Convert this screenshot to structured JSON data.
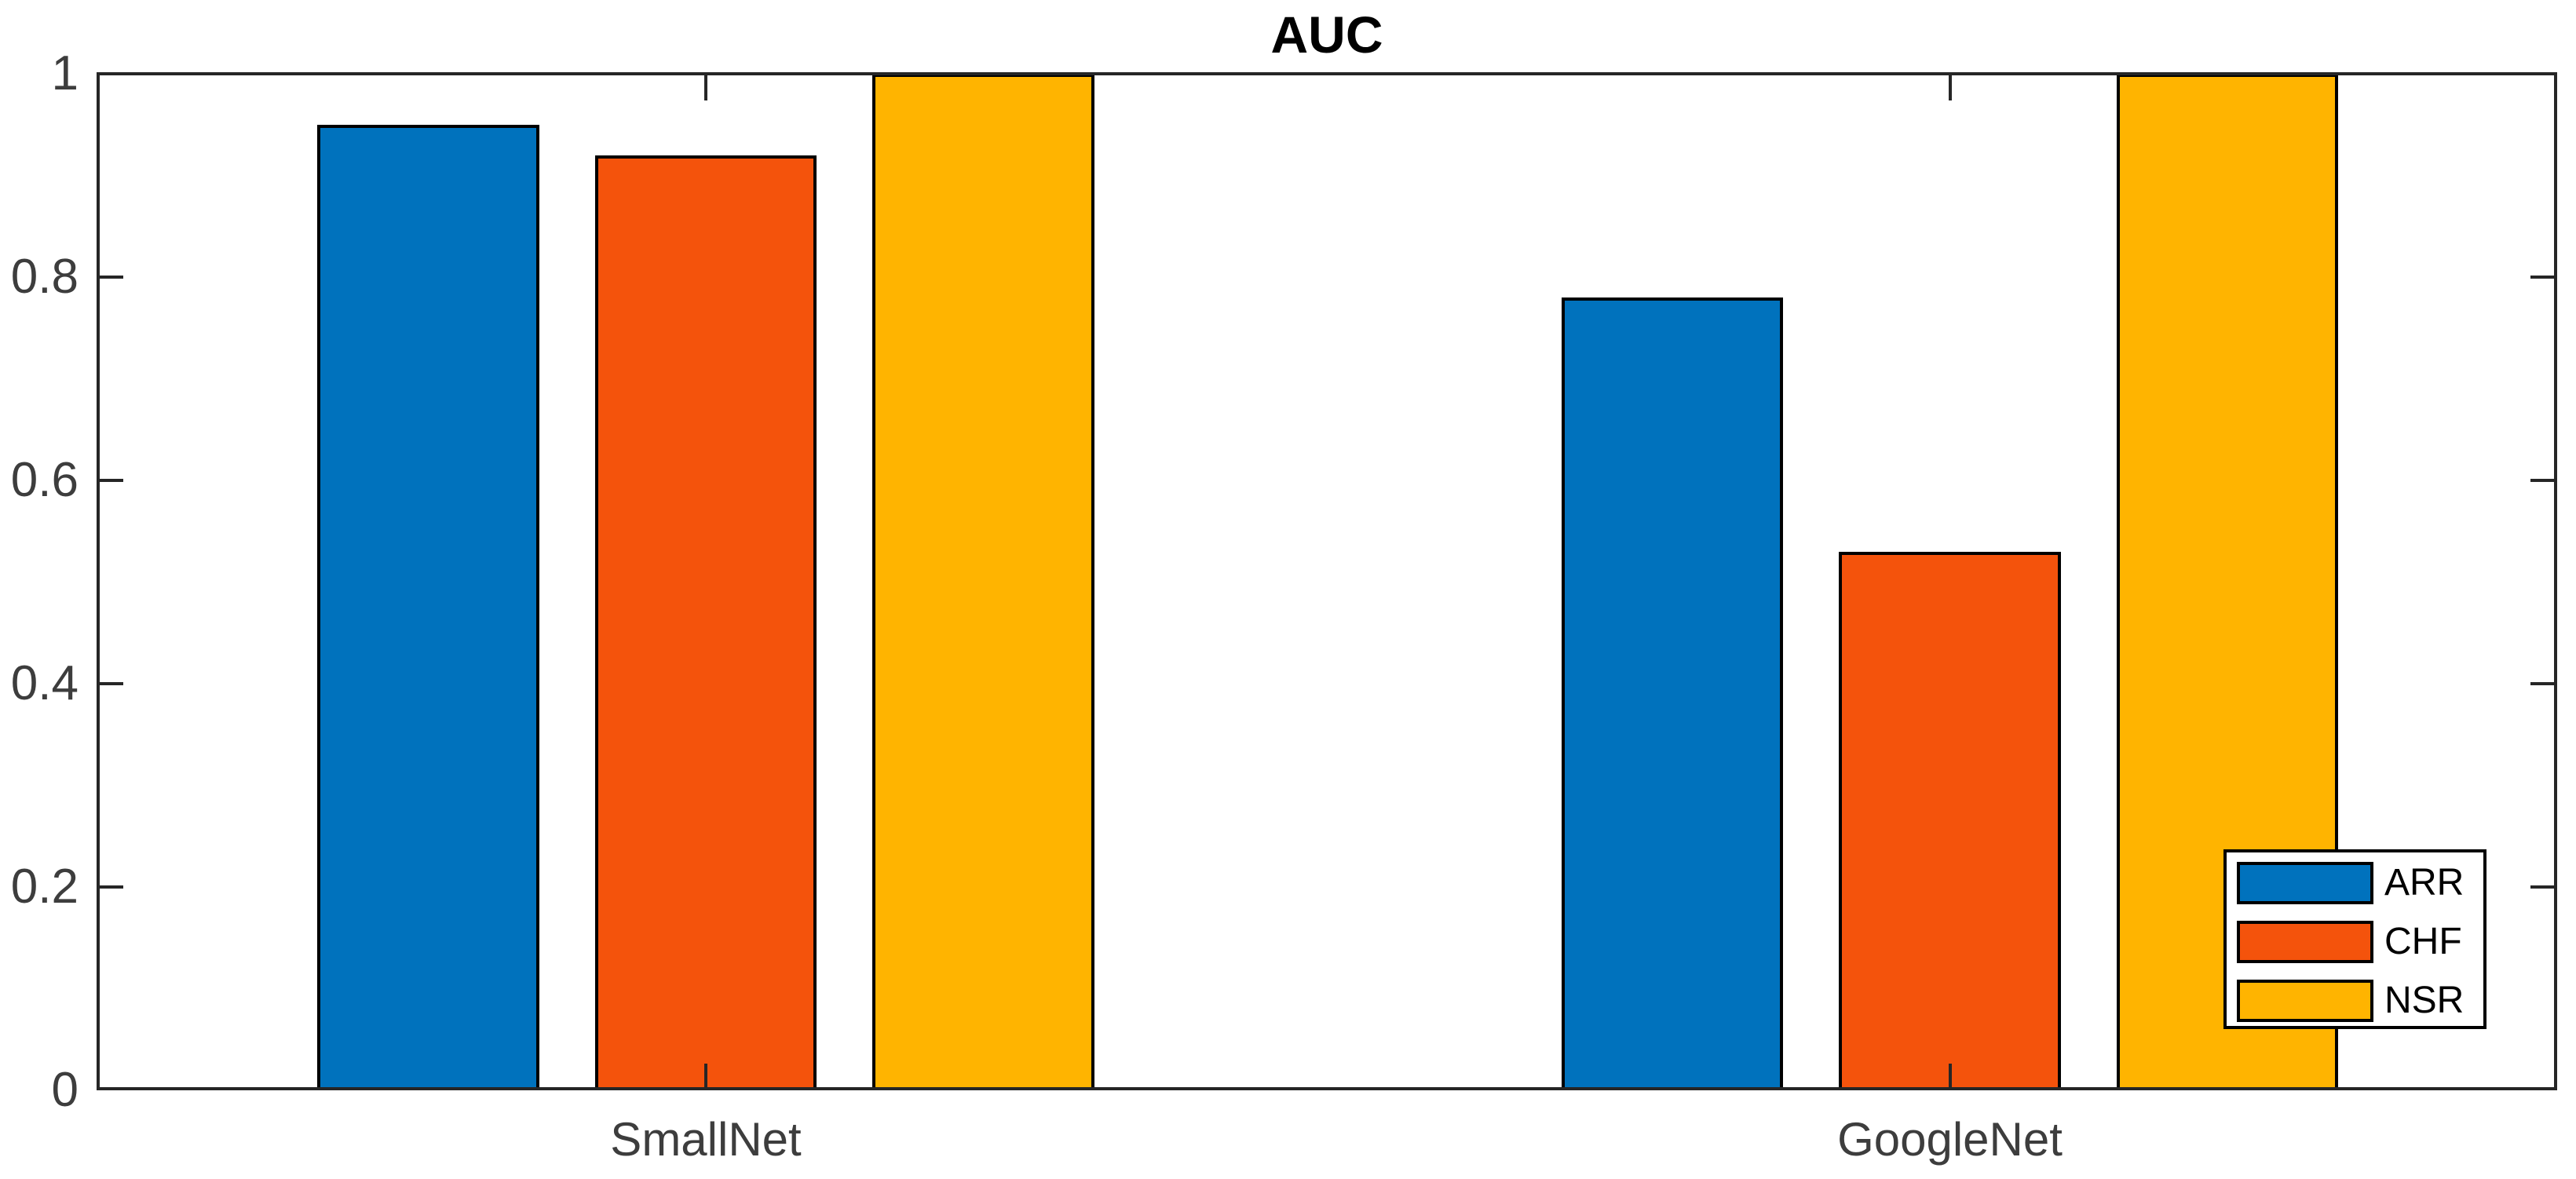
{
  "title": "AUC",
  "colors": {
    "axis": "#262626",
    "tick_label_text": "#3d3d3d",
    "title_text": "#000000",
    "bar_edge": "#000000",
    "legend_background": "#ffffff",
    "series_blue": "#0072BD",
    "series_orange": "#F4530C",
    "series_yellow": "#FFB400"
  },
  "chart_data": {
    "type": "bar",
    "title": "AUC",
    "categories": [
      "SmallNet",
      "GoogleNet"
    ],
    "series": [
      {
        "name": "ARR",
        "color": "#0072BD",
        "values": [
          0.95,
          0.78
        ]
      },
      {
        "name": "CHF",
        "color": "#F4530C",
        "values": [
          0.92,
          0.53
        ]
      },
      {
        "name": "NSR",
        "color": "#FFB400",
        "values": [
          1.0,
          1.0
        ]
      }
    ],
    "xlabel": "",
    "ylabel": "",
    "ylim": [
      0,
      1
    ],
    "yticks": [
      0,
      0.2,
      0.4,
      0.6,
      0.8,
      1
    ],
    "ytick_labels": [
      "0",
      "0.2",
      "0.4",
      "0.6",
      "0.8",
      "1"
    ],
    "grid": false,
    "legend_position": "bottom-right",
    "legend": {
      "items": [
        "ARR",
        "CHF",
        "NSR"
      ]
    }
  }
}
